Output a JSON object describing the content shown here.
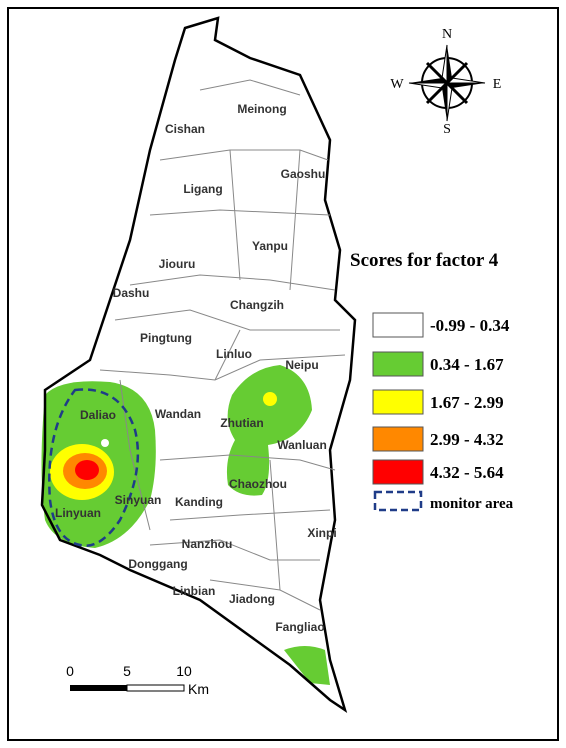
{
  "compass": {
    "n": "N",
    "e": "E",
    "s": "S",
    "w": "W"
  },
  "places": [
    "Meinong",
    "Cishan",
    "Gaoshu",
    "Ligang",
    "Yanpu",
    "Jiouru",
    "Dashu",
    "Changzih",
    "Pingtung",
    "Linluo",
    "Neipu",
    "Daliao",
    "Wandan",
    "Zhutian",
    "Wanluan",
    "Chaozhou",
    "Linyuan",
    "Sinyuan",
    "Kanding",
    "Xinpi",
    "Nanzhou",
    "Donggang",
    "Linbian",
    "Jiadong",
    "Fangliao"
  ],
  "legend": {
    "title": "Scores for factor 4",
    "items": [
      {
        "label": "-0.99 - 0.34",
        "color": "#ffffff"
      },
      {
        "label": "0.34 - 1.67",
        "color": "#66cc33"
      },
      {
        "label": "1.67 - 2.99",
        "color": "#ffff00"
      },
      {
        "label": "2.99 - 4.32",
        "color": "#ff8800"
      },
      {
        "label": "4.32 - 5.64",
        "color": "#ff0000"
      },
      {
        "label": "monitor  area",
        "color": "#1f3c88",
        "line_style": "dashed"
      }
    ]
  },
  "scale_bar": {
    "ticks": [
      "0",
      "5",
      "10"
    ],
    "unit": "Km"
  }
}
